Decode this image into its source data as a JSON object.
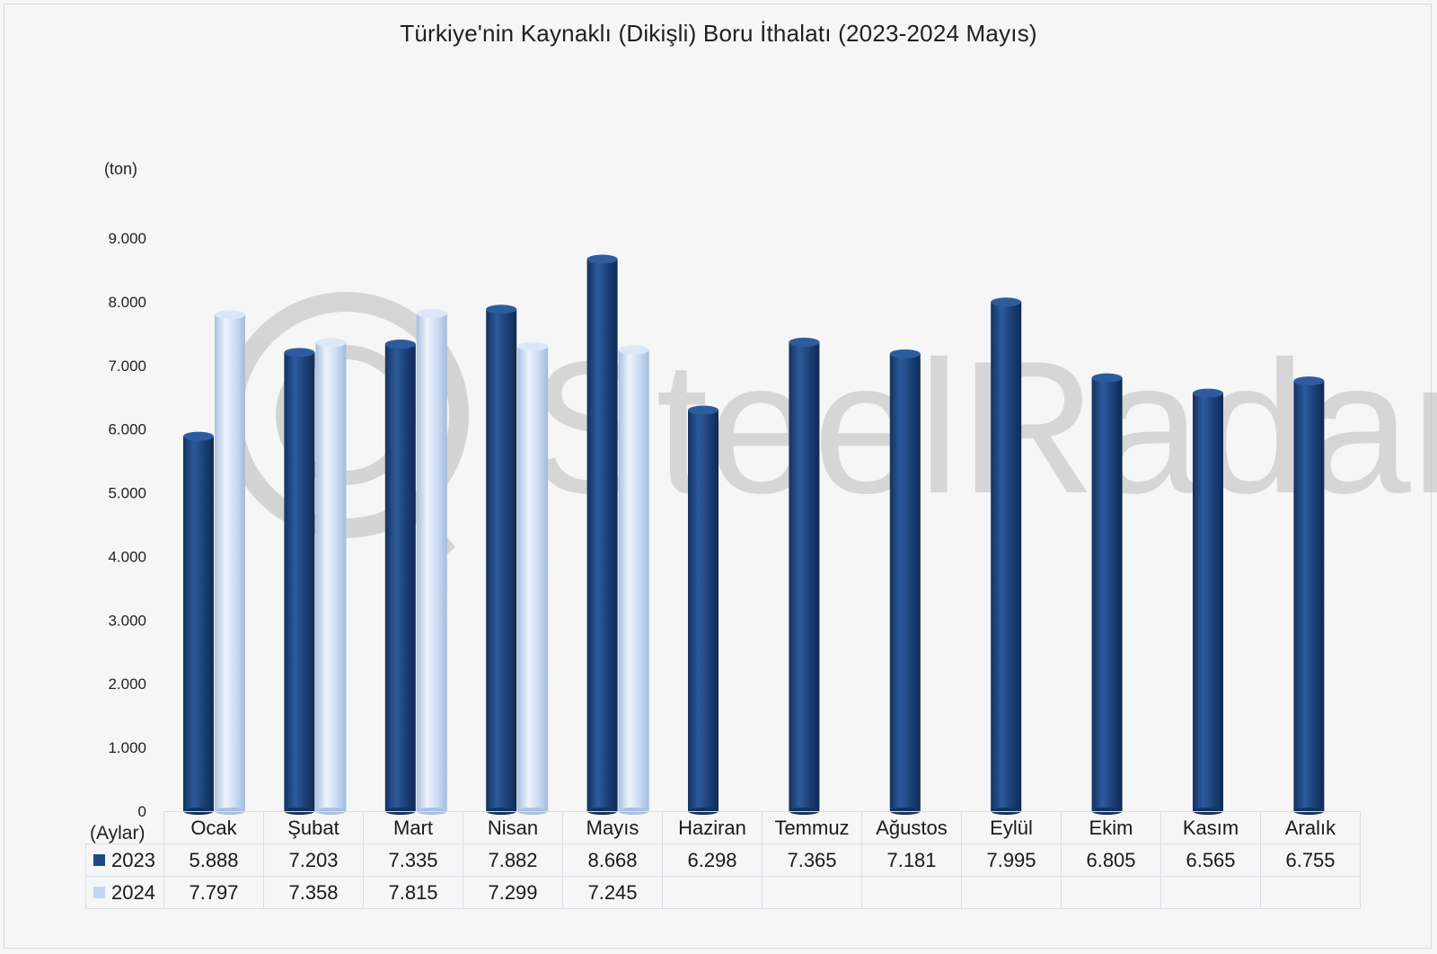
{
  "chart_data": {
    "type": "bar",
    "title": "Türkiye'nin Kaynaklı (Dikişli) Boru İthalatı (2023-2024 Mayıs)",
    "ylabel": "(ton)",
    "xlabel": "(Aylar)",
    "ylim": [
      0,
      9000
    ],
    "yticks": [
      "0",
      "1.000",
      "2.000",
      "3.000",
      "4.000",
      "5.000",
      "6.000",
      "7.000",
      "8.000",
      "9.000"
    ],
    "categories": [
      "Ocak",
      "Şubat",
      "Mart",
      "Nisan",
      "Mayıs",
      "Haziran",
      "Temmuz",
      "Ağustos",
      "Eylül",
      "Ekim",
      "Kasım",
      "Aralık"
    ],
    "series": [
      {
        "name": "2023",
        "color": "#1f4a87",
        "values": [
          5888,
          7203,
          7335,
          7882,
          8668,
          6298,
          7365,
          7181,
          7995,
          6805,
          6565,
          6755
        ],
        "labels": [
          "5.888",
          "7.203",
          "7.335",
          "7.882",
          "8.668",
          "6.298",
          "7.365",
          "7.181",
          "7.995",
          "6.805",
          "6.565",
          "6.755"
        ]
      },
      {
        "name": "2024",
        "color": "#c3d6f1",
        "values": [
          7797,
          7358,
          7815,
          7299,
          7245,
          null,
          null,
          null,
          null,
          null,
          null,
          null
        ],
        "labels": [
          "7.797",
          "7.358",
          "7.815",
          "7.299",
          "7.245",
          "",
          "",
          "",
          "",
          "",
          "",
          ""
        ]
      }
    ],
    "legend": "data-table",
    "grid": false
  },
  "watermark": "SteelRadar"
}
